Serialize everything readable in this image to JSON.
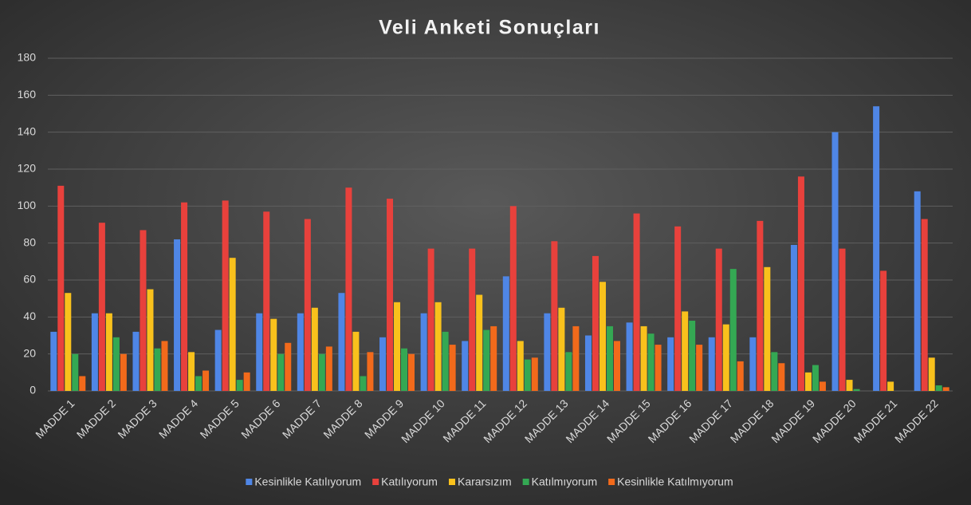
{
  "chart_data": {
    "type": "bar",
    "title": "Veli Anketi Sonuçları",
    "categories": [
      "MADDE 1",
      "MADDE 2",
      "MADDE 3",
      "MADDE 4",
      "MADDE 5",
      "MADDE 6",
      "MADDE 7",
      "MADDE 8",
      "MADDE 9",
      "MADDE 10",
      "MADDE 11",
      "MADDE 12",
      "MADDE 13",
      "MADDE 14",
      "MADDE 15",
      "MADDE 16",
      "MADDE 17",
      "MADDE 18",
      "MADDE 19",
      "MADDE 20",
      "MADDE 21",
      "MADDE 22"
    ],
    "series": [
      {
        "name": "Kesinlikle Katılıyorum",
        "color": "#4f86e6",
        "values": [
          32,
          42,
          32,
          82,
          33,
          42,
          42,
          53,
          29,
          42,
          27,
          62,
          42,
          30,
          37,
          29,
          29,
          29,
          79,
          140,
          154,
          108
        ]
      },
      {
        "name": "Katılıyorum",
        "color": "#e8413c",
        "values": [
          111,
          91,
          87,
          102,
          103,
          97,
          93,
          110,
          104,
          77,
          77,
          100,
          81,
          73,
          96,
          89,
          77,
          92,
          116,
          77,
          65,
          93
        ]
      },
      {
        "name": "Kararsızım",
        "color": "#f9c11c",
        "values": [
          53,
          42,
          55,
          21,
          72,
          39,
          45,
          32,
          48,
          48,
          52,
          27,
          45,
          59,
          35,
          43,
          36,
          67,
          10,
          6,
          5,
          18
        ]
      },
      {
        "name": "Katılmıyorum",
        "color": "#34a853",
        "values": [
          20,
          29,
          23,
          8,
          6,
          20,
          20,
          8,
          23,
          32,
          33,
          17,
          21,
          35,
          31,
          38,
          66,
          21,
          14,
          1,
          0,
          3
        ]
      },
      {
        "name": "Kesinlikle Katılmıyorum",
        "color": "#f26a1b",
        "values": [
          8,
          20,
          27,
          11,
          10,
          26,
          24,
          21,
          20,
          25,
          35,
          18,
          35,
          27,
          25,
          25,
          16,
          15,
          5,
          0,
          0,
          2
        ]
      }
    ],
    "ylim": [
      0,
      180
    ],
    "yticks": [
      0,
      20,
      40,
      60,
      80,
      100,
      120,
      140,
      160,
      180
    ],
    "grid": true,
    "legend": "bottom"
  }
}
